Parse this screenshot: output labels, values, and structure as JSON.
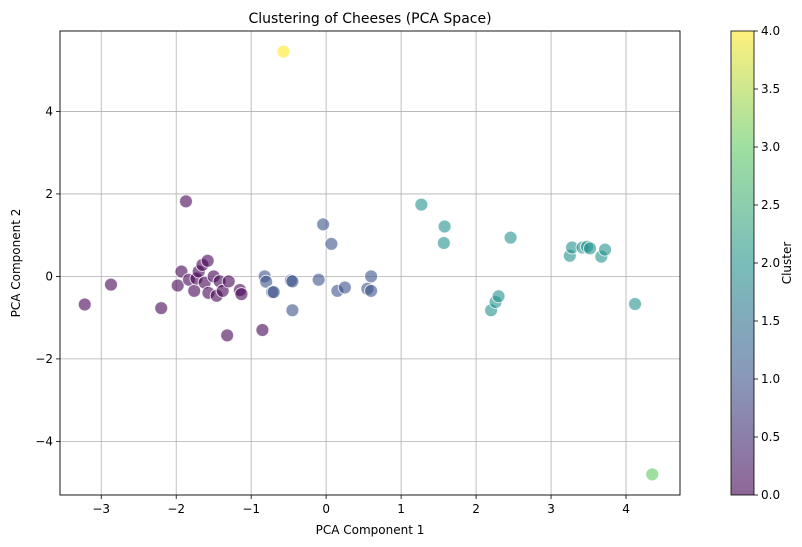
{
  "chart_data": {
    "type": "scatter",
    "title": "Clustering of Cheeses (PCA Space)",
    "xlabel": "PCA Component 1",
    "ylabel": "PCA Component 2",
    "xlim": [
      -3.55,
      4.72
    ],
    "ylim": [
      -5.3,
      5.95
    ],
    "xticks": [
      -3,
      -2,
      -1,
      0,
      1,
      2,
      3,
      4
    ],
    "yticks": [
      -4,
      -2,
      0,
      2,
      4
    ],
    "grid": true,
    "colorbar": {
      "label": "Cluster",
      "range": [
        0,
        4
      ],
      "ticks": [
        0.0,
        0.5,
        1.0,
        1.5,
        2.0,
        2.5,
        3.0,
        3.5,
        4.0
      ],
      "tick_labels": [
        "0.0",
        "0.5",
        "1.0",
        "1.5",
        "2.0",
        "2.5",
        "3.0",
        "3.5",
        "4.0"
      ],
      "colormap": "viridis",
      "stops": [
        "#440154",
        "#3b528b",
        "#21918c",
        "#5ec962",
        "#fde725"
      ]
    },
    "marker_opacity": 0.6,
    "marker_edge_color": "#ffffff",
    "points": [
      {
        "x": -3.22,
        "y": -0.68,
        "cluster": 0
      },
      {
        "x": -2.87,
        "y": -0.2,
        "cluster": 0
      },
      {
        "x": -2.2,
        "y": -0.77,
        "cluster": 0
      },
      {
        "x": -1.93,
        "y": 0.12,
        "cluster": 0
      },
      {
        "x": -1.98,
        "y": -0.22,
        "cluster": 0
      },
      {
        "x": -1.87,
        "y": 1.82,
        "cluster": 0
      },
      {
        "x": -1.83,
        "y": -0.08,
        "cluster": 0
      },
      {
        "x": -1.76,
        "y": -0.35,
        "cluster": 0
      },
      {
        "x": -1.73,
        "y": -0.05,
        "cluster": 0
      },
      {
        "x": -1.7,
        "y": 0.12,
        "cluster": 0
      },
      {
        "x": -1.65,
        "y": 0.28,
        "cluster": 0
      },
      {
        "x": -1.62,
        "y": -0.15,
        "cluster": 0
      },
      {
        "x": -1.58,
        "y": 0.38,
        "cluster": 0
      },
      {
        "x": -1.57,
        "y": -0.4,
        "cluster": 0
      },
      {
        "x": -1.5,
        "y": 0.0,
        "cluster": 0
      },
      {
        "x": -1.46,
        "y": -0.47,
        "cluster": 0
      },
      {
        "x": -1.42,
        "y": -0.12,
        "cluster": 0
      },
      {
        "x": -1.38,
        "y": -0.35,
        "cluster": 0
      },
      {
        "x": -1.32,
        "y": -1.43,
        "cluster": 0
      },
      {
        "x": -1.3,
        "y": -0.12,
        "cluster": 0
      },
      {
        "x": -1.15,
        "y": -0.33,
        "cluster": 0
      },
      {
        "x": -1.13,
        "y": -0.43,
        "cluster": 0
      },
      {
        "x": -0.85,
        "y": -1.3,
        "cluster": 0
      },
      {
        "x": -0.82,
        "y": 0.0,
        "cluster": 1
      },
      {
        "x": -0.8,
        "y": -0.13,
        "cluster": 1
      },
      {
        "x": -0.72,
        "y": -0.38,
        "cluster": 1
      },
      {
        "x": -0.7,
        "y": -0.38,
        "cluster": 1
      },
      {
        "x": -0.47,
        "y": -0.1,
        "cluster": 1
      },
      {
        "x": -0.45,
        "y": -0.12,
        "cluster": 1
      },
      {
        "x": -0.45,
        "y": -0.82,
        "cluster": 1
      },
      {
        "x": -0.1,
        "y": -0.08,
        "cluster": 1
      },
      {
        "x": -0.04,
        "y": 1.26,
        "cluster": 1
      },
      {
        "x": 0.07,
        "y": 0.79,
        "cluster": 1
      },
      {
        "x": 0.15,
        "y": -0.35,
        "cluster": 1
      },
      {
        "x": 0.25,
        "y": -0.27,
        "cluster": 1
      },
      {
        "x": 0.55,
        "y": -0.3,
        "cluster": 1
      },
      {
        "x": 0.6,
        "y": -0.35,
        "cluster": 1
      },
      {
        "x": 0.6,
        "y": 0.0,
        "cluster": 1
      },
      {
        "x": 1.27,
        "y": 1.74,
        "cluster": 2
      },
      {
        "x": 1.57,
        "y": 0.81,
        "cluster": 2
      },
      {
        "x": 1.58,
        "y": 1.21,
        "cluster": 2
      },
      {
        "x": 2.2,
        "y": -0.82,
        "cluster": 2
      },
      {
        "x": 2.26,
        "y": -0.62,
        "cluster": 2
      },
      {
        "x": 2.3,
        "y": -0.48,
        "cluster": 2
      },
      {
        "x": 2.46,
        "y": 0.94,
        "cluster": 2
      },
      {
        "x": 3.25,
        "y": 0.5,
        "cluster": 2
      },
      {
        "x": 3.28,
        "y": 0.7,
        "cluster": 2
      },
      {
        "x": 3.42,
        "y": 0.7,
        "cluster": 2
      },
      {
        "x": 3.48,
        "y": 0.72,
        "cluster": 2
      },
      {
        "x": 3.52,
        "y": 0.68,
        "cluster": 2
      },
      {
        "x": 3.67,
        "y": 0.48,
        "cluster": 2
      },
      {
        "x": 3.72,
        "y": 0.65,
        "cluster": 2
      },
      {
        "x": 4.12,
        "y": -0.67,
        "cluster": 2
      },
      {
        "x": 4.35,
        "y": -4.8,
        "cluster": 3
      },
      {
        "x": -0.57,
        "y": 5.45,
        "cluster": 4
      }
    ]
  }
}
